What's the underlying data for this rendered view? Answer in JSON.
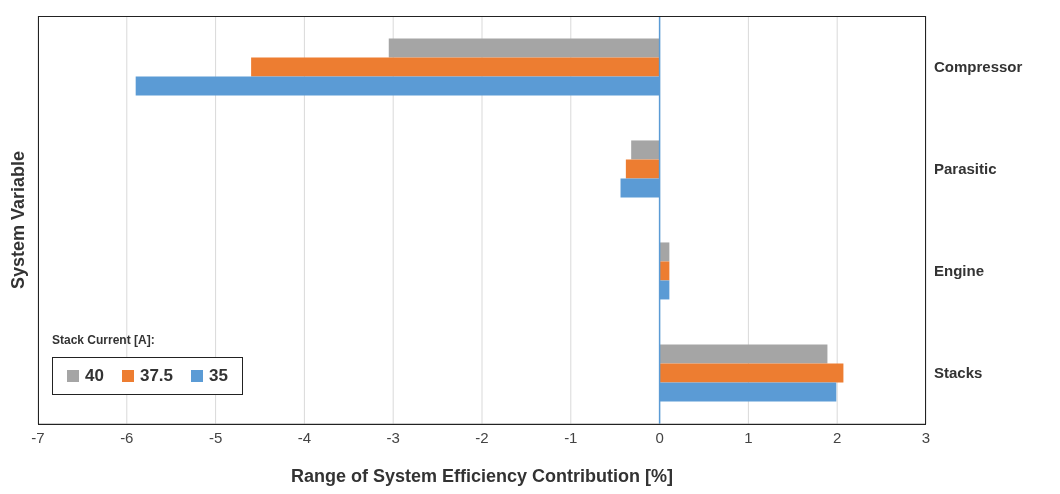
{
  "chart_data": {
    "type": "bar",
    "orientation": "horizontal",
    "xlabel": "Range of System Efficiency Contribution [%]",
    "ylabel": "System Variable",
    "legend_title": "Stack Current [A]:",
    "categories": [
      "Compressor",
      "Parasitic",
      "Engine",
      "Stacks"
    ],
    "series": [
      {
        "name": "40",
        "color": "#a5a5a5",
        "values": [
          -3.05,
          -0.32,
          0.11,
          1.89
        ]
      },
      {
        "name": "37.5",
        "color": "#ed7d31",
        "values": [
          -4.6,
          -0.38,
          0.11,
          2.07
        ]
      },
      {
        "name": "35",
        "color": "#5b9bd5",
        "values": [
          -5.9,
          -0.44,
          0.11,
          1.99
        ]
      }
    ],
    "ref_lines": [
      {
        "axis": "x",
        "value": 0,
        "color": "#5b9bd5"
      }
    ],
    "xlim": [
      -7,
      3
    ],
    "xticks": [
      -7,
      -6,
      -5,
      -4,
      -3,
      -2,
      -1,
      0,
      1,
      2,
      3
    ],
    "grid": "x",
    "legend": "bottom left"
  }
}
